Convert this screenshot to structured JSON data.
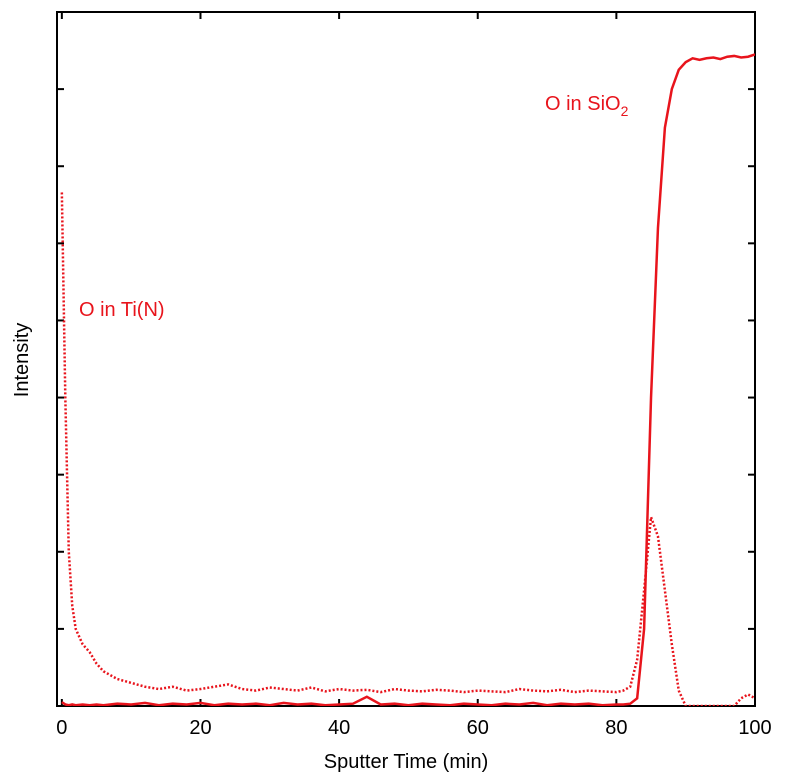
{
  "chart_data": {
    "type": "line",
    "x_label": "Sputter Time (min)",
    "y_label": "Intensity",
    "annotations": [
      {
        "text": "O in Ti(N)"
      },
      {
        "text": "O in SiO",
        "subscript": "2"
      }
    ],
    "x": [
      0,
      0.5,
      1,
      1.5,
      2,
      3,
      4,
      5,
      6,
      8,
      10,
      12,
      14,
      16,
      18,
      20,
      22,
      24,
      26,
      28,
      30,
      32,
      34,
      36,
      38,
      40,
      42,
      44,
      46,
      48,
      50,
      52,
      54,
      56,
      58,
      60,
      62,
      64,
      66,
      68,
      70,
      72,
      74,
      76,
      78,
      80,
      81,
      82,
      83,
      84,
      85,
      86,
      87,
      88,
      89,
      90,
      91,
      92,
      93,
      94,
      95,
      96,
      97,
      98,
      99,
      100
    ],
    "series": [
      {
        "color": "#e8141c",
        "style": "solid",
        "values": [
          0.05,
          0.02,
          0.01,
          0.02,
          0.01,
          0.02,
          0.01,
          0.02,
          0.01,
          0.03,
          0.02,
          0.04,
          0.01,
          0.03,
          0.02,
          0.04,
          0.01,
          0.03,
          0.02,
          0.03,
          0.01,
          0.04,
          0.02,
          0.03,
          0.01,
          0.02,
          0.03,
          0.12,
          0.02,
          0.03,
          0.01,
          0.03,
          0.02,
          0.01,
          0.03,
          0.02,
          0.01,
          0.03,
          0.02,
          0.04,
          0.01,
          0.03,
          0.02,
          0.03,
          0.01,
          0.02,
          0.02,
          0.03,
          0.1,
          1.0,
          4.0,
          6.2,
          7.5,
          8.0,
          8.25,
          8.35,
          8.4,
          8.38,
          8.4,
          8.41,
          8.39,
          8.42,
          8.43,
          8.41,
          8.42,
          8.45
        ]
      },
      {
        "color": "#e8141c",
        "style": "dotted",
        "values": [
          6.66,
          4.0,
          2.0,
          1.3,
          1.0,
          0.8,
          0.7,
          0.55,
          0.45,
          0.35,
          0.3,
          0.25,
          0.22,
          0.25,
          0.2,
          0.22,
          0.25,
          0.28,
          0.22,
          0.2,
          0.24,
          0.22,
          0.2,
          0.24,
          0.19,
          0.22,
          0.2,
          0.21,
          0.18,
          0.22,
          0.2,
          0.19,
          0.21,
          0.2,
          0.18,
          0.2,
          0.19,
          0.18,
          0.22,
          0.2,
          0.19,
          0.21,
          0.18,
          0.2,
          0.19,
          0.18,
          0.2,
          0.25,
          0.6,
          1.5,
          2.45,
          2.2,
          1.5,
          0.8,
          0.2,
          0,
          0,
          0,
          0,
          0,
          0,
          0,
          0,
          0.1,
          0.15,
          0.1
        ]
      }
    ],
    "xlim": [
      -0.7,
      100
    ],
    "ylim": [
      0,
      9
    ],
    "xticks": [
      0,
      20,
      40,
      60,
      80,
      100
    ],
    "yticks": [
      1,
      2,
      3,
      4,
      5,
      6,
      7,
      8
    ]
  }
}
